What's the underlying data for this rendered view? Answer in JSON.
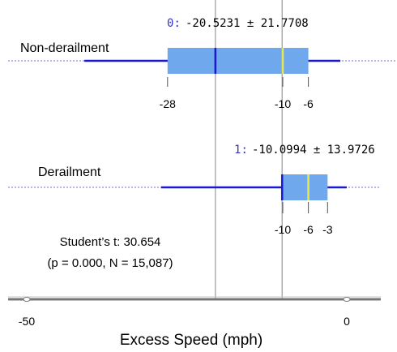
{
  "chart_data": {
    "type": "box",
    "xlabel": "Excess Speed (mph)",
    "xlim": [
      -50,
      3
    ],
    "x_ticks": [
      -50,
      0
    ],
    "series": [
      {
        "name": "Non-derailment",
        "group_label": "0",
        "mean_sd_text": "-20.5231 ± 21.7708",
        "mean": -20.5231,
        "sd": 21.7708,
        "q1": -28,
        "median": -10,
        "q3": -6,
        "whisker_low": -41,
        "whisker_high": -1,
        "tick_labels": [
          "-28",
          "-10",
          "-6"
        ]
      },
      {
        "name": "Derailment",
        "group_label": "1",
        "mean_sd_text": "-10.0994 ± 13.9726",
        "mean": -10.0994,
        "sd": 13.9726,
        "q1": -10,
        "median": -6,
        "q3": -3,
        "whisker_low": -29,
        "whisker_high": 0,
        "tick_labels": [
          "-10",
          "-6",
          "-3"
        ]
      }
    ],
    "annotation": {
      "line1": "Student’s t: 30.654",
      "line2": "(p = 0.000, N = 15,087)"
    },
    "colors": {
      "box_fill": "#6fa8ec",
      "whisker": "#1a1acc",
      "median": "#e8e84a",
      "mean_line": "#1a1acc",
      "guide": "#999999",
      "axis": "#777777",
      "group_label": "#3333cc"
    }
  }
}
